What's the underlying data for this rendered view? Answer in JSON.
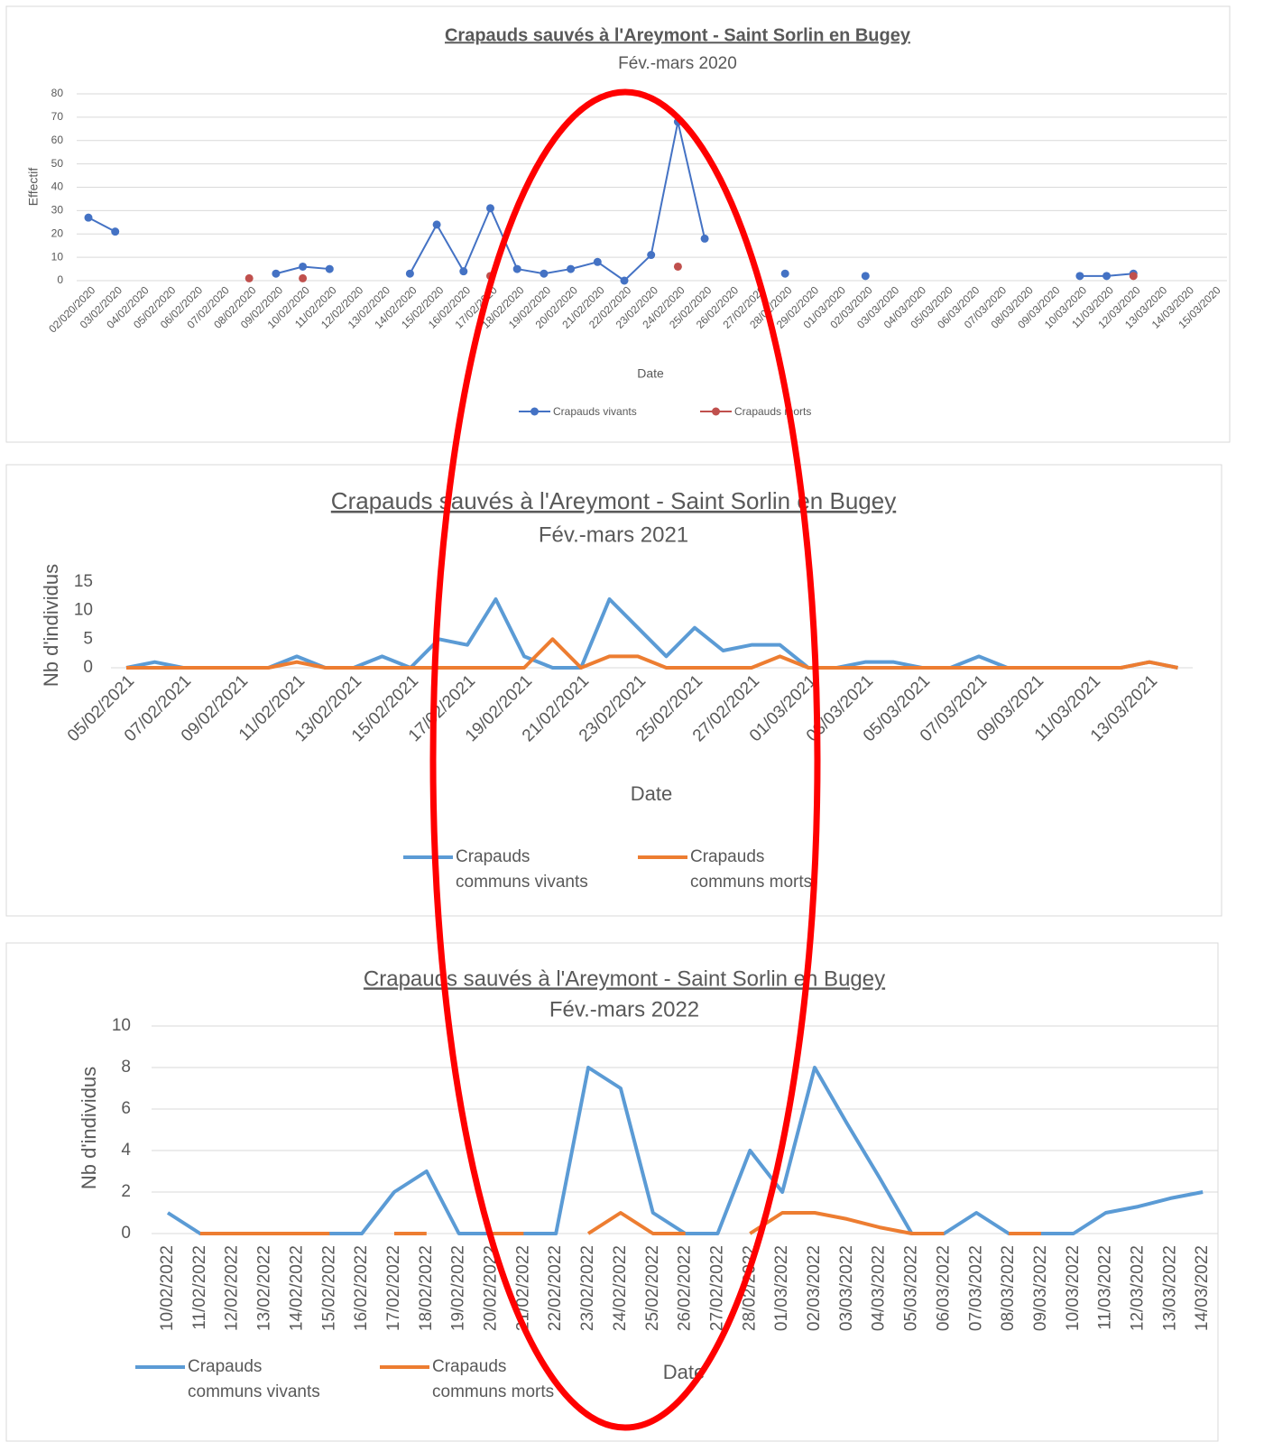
{
  "chart_data": [
    {
      "type": "line",
      "title": "Crapauds sauvés à l'Areymont - Saint Sorlin en Bugey",
      "subtitle": "Fév.-mars 2020",
      "x_label": "Date",
      "y_label": "Effectif",
      "grid": true,
      "markers": true,
      "categories": [
        "02/020/2020",
        "03/02/2020",
        "04/02/2020",
        "05/02/2020",
        "06/02/2020",
        "07/02/2020",
        "08/02/2020",
        "09/02/2020",
        "10/02/2020",
        "11/02/2020",
        "12/02/2020",
        "13/02/2020",
        "14/02/2020",
        "15/02/2020",
        "16/02/2020",
        "17/02/2020",
        "18/02/2020",
        "19/02/2020",
        "20/02/2020",
        "21/02/2020",
        "22/02/2020",
        "23/02/2020",
        "24/02/2020",
        "25/02/2020",
        "26/02/2020",
        "27/02/2020",
        "28/02/2020",
        "29/02/2020",
        "01/03/2020",
        "02/03/2020",
        "03/03/2020",
        "04/03/2020",
        "05/03/2020",
        "06/03/2020",
        "07/03/2020",
        "08/03/2020",
        "09/03/2020",
        "10/03/2020",
        "11/03/2020",
        "12/03/2020",
        "13/03/2020",
        "14/03/2020",
        "15/03/2020"
      ],
      "series": [
        {
          "name": "Crapauds vivants",
          "color": "#4472c4",
          "values": [
            27,
            21,
            null,
            null,
            null,
            null,
            null,
            3,
            6,
            5,
            null,
            null,
            3,
            24,
            4,
            31,
            5,
            3,
            5,
            8,
            0,
            11,
            68,
            18,
            null,
            null,
            3,
            null,
            null,
            2,
            null,
            null,
            null,
            null,
            null,
            null,
            null,
            2,
            2,
            3,
            null,
            null,
            null
          ]
        },
        {
          "name": "Crapauds morts",
          "color": "#c0504d",
          "values": [
            null,
            null,
            null,
            null,
            null,
            null,
            1,
            null,
            1,
            null,
            null,
            null,
            null,
            null,
            null,
            2,
            null,
            null,
            null,
            null,
            null,
            null,
            6,
            null,
            null,
            null,
            null,
            null,
            null,
            null,
            null,
            null,
            null,
            null,
            null,
            null,
            null,
            null,
            null,
            2,
            null,
            null,
            null
          ]
        }
      ],
      "ylim": [
        0,
        80
      ],
      "yticks": [
        0,
        10,
        20,
        30,
        40,
        50,
        60,
        70,
        80
      ]
    },
    {
      "type": "line",
      "title": "Crapauds sauvés à l'Areymont - Saint Sorlin en Bugey",
      "subtitle": "Fév.-mars 2021",
      "x_label": "Date",
      "y_label": "Nb d'individus",
      "grid": false,
      "categories": [
        "05/02/2021",
        null,
        "07/02/2021",
        null,
        "09/02/2021",
        null,
        "11/02/2021",
        null,
        "13/02/2021",
        null,
        "15/02/2021",
        null,
        "17/02/2021",
        null,
        "19/02/2021",
        null,
        "21/02/2021",
        null,
        "23/02/2021",
        null,
        "25/02/2021",
        null,
        "27/02/2021",
        null,
        "01/03/2021",
        null,
        "03/03/2021",
        null,
        "05/03/2021",
        null,
        "07/03/2021",
        null,
        "09/03/2021",
        null,
        "11/03/2021",
        null,
        "13/03/2021",
        null
      ],
      "series": [
        {
          "name": "Crapauds communs vivants",
          "color": "#5b9bd5",
          "values": [
            0,
            1,
            0,
            0,
            0,
            0,
            2,
            0,
            0,
            2,
            0,
            5,
            4,
            12,
            2,
            0,
            0,
            12,
            7,
            2,
            7,
            3,
            4,
            4,
            0,
            0,
            1,
            1,
            0,
            0,
            2,
            0,
            0,
            0,
            0,
            0,
            1,
            0
          ]
        },
        {
          "name": "Crapauds communs morts",
          "color": "#ed7d31",
          "values": [
            0,
            0,
            0,
            0,
            0,
            0,
            1,
            0,
            0,
            0,
            0,
            0,
            0,
            0,
            0,
            5,
            0,
            2,
            2,
            0,
            0,
            0,
            0,
            2,
            0,
            0,
            0,
            0,
            0,
            0,
            0,
            0,
            0,
            0,
            0,
            0,
            1,
            0
          ]
        }
      ],
      "ylim": [
        0,
        15
      ],
      "yticks": [
        0,
        5,
        10,
        15
      ]
    },
    {
      "type": "line",
      "title": "Crapauds sauvés à l'Areymont - Saint Sorlin en Bugey",
      "subtitle": "Fév.-mars 2022",
      "x_label": "Date",
      "y_label": "Nb d'individus",
      "grid": true,
      "categories": [
        "10/02/2022",
        "11/02/2022",
        "12/02/2022",
        "13/02/2022",
        "14/02/2022",
        "15/02/2022",
        "16/02/2022",
        "17/02/2022",
        "18/02/2022",
        "19/02/2022",
        "20/02/2022",
        "21/02/2022",
        "22/02/2022",
        "23/02/2022",
        "24/02/2022",
        "25/02/2022",
        "26/02/2022",
        "27/02/2022",
        "28/02/2022",
        "01/03/2022",
        "02/03/2022",
        "03/03/2022",
        "04/03/2022",
        "05/03/2022",
        "06/03/2022",
        "07/03/2022",
        "08/03/2022",
        "09/03/2022",
        "10/03/2022",
        "11/03/2022",
        "12/03/2022",
        "13/03/2022",
        "14/03/2022"
      ],
      "series": [
        {
          "name": "Crapauds communs vivants",
          "color": "#5b9bd5",
          "values": [
            1,
            0,
            0,
            0,
            0,
            0,
            0,
            2,
            3,
            0,
            0,
            0,
            0,
            8,
            7,
            1,
            0,
            0,
            4,
            2,
            8,
            5.3,
            2.7,
            0,
            0,
            1,
            0,
            0,
            0,
            1,
            1.3,
            1.7,
            2
          ]
        },
        {
          "name": "Crapauds communs morts",
          "color": "#ed7d31",
          "values": [
            null,
            0,
            0,
            0,
            0,
            0,
            null,
            0,
            0,
            null,
            0,
            0,
            null,
            0,
            1,
            0,
            0,
            null,
            0,
            1,
            1,
            0.7,
            0.3,
            0,
            0,
            null,
            0,
            0,
            null,
            null,
            null,
            null,
            null
          ]
        }
      ],
      "ylim": [
        0,
        10
      ],
      "yticks": [
        0,
        2,
        4,
        6,
        8,
        10
      ]
    }
  ]
}
